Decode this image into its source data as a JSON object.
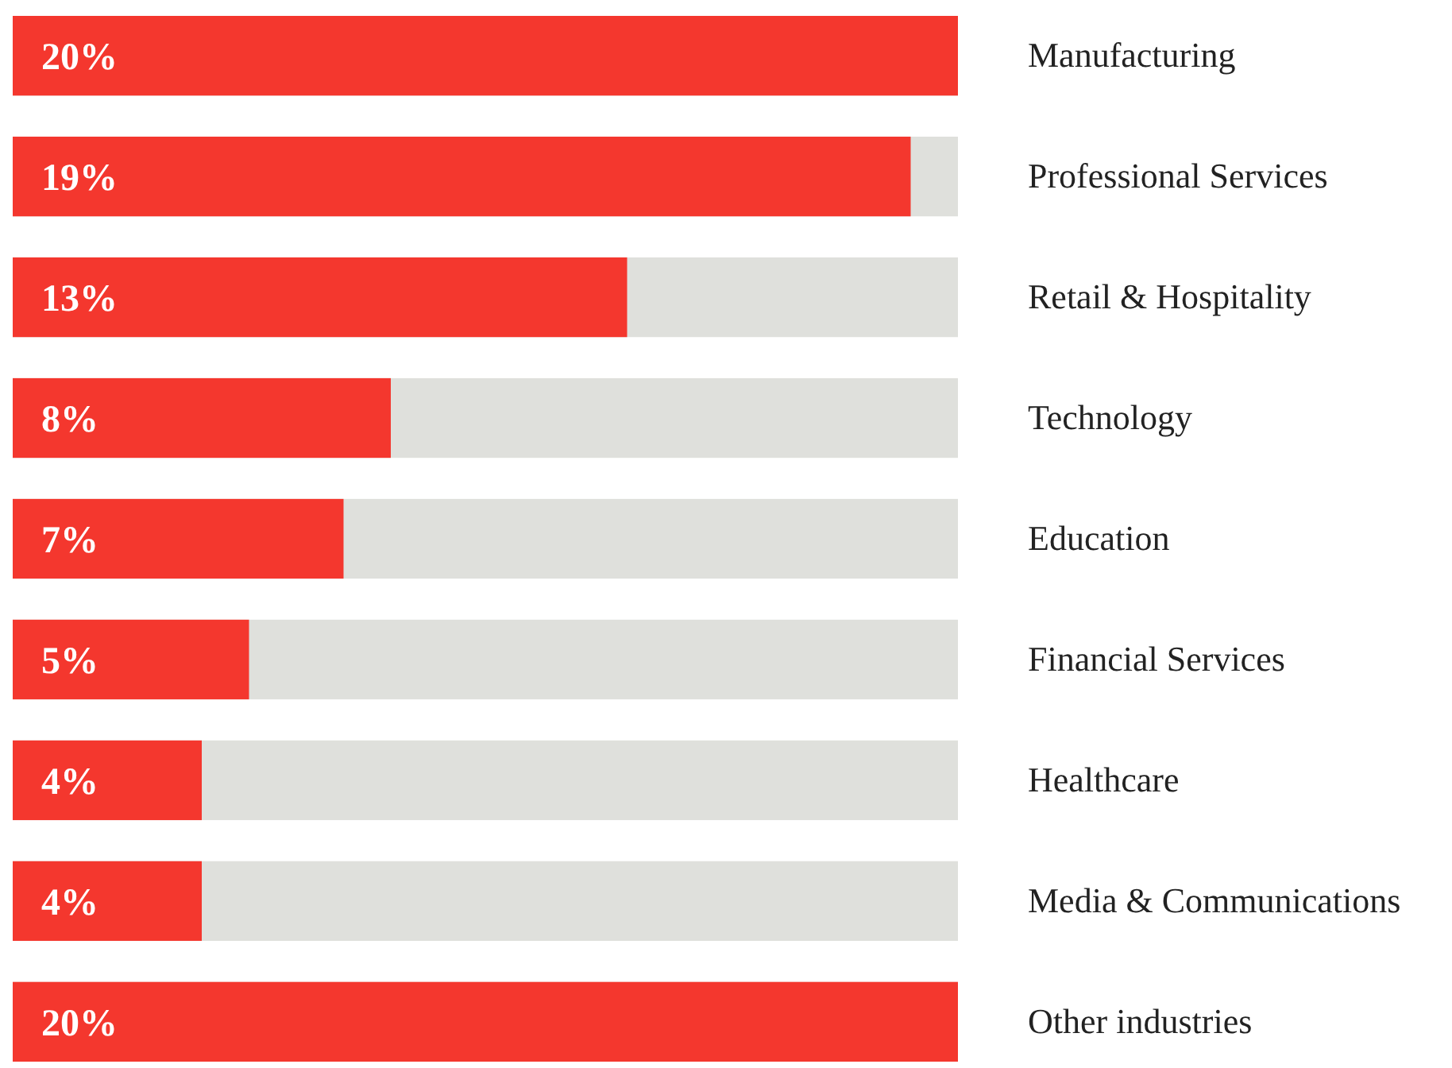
{
  "chart_data": {
    "type": "bar",
    "orientation": "horizontal",
    "categories": [
      "Manufacturing",
      "Professional Services",
      "Retail & Hospitality",
      "Technology",
      "Education",
      "Financial Services",
      "Healthcare",
      "Media & Communications",
      "Other industries"
    ],
    "values": [
      20,
      19,
      13,
      8,
      7,
      5,
      4,
      4,
      20
    ],
    "value_labels": [
      "20%",
      "19%",
      "13%",
      "8%",
      "7%",
      "5%",
      "4%",
      "4%",
      "20%"
    ],
    "color": "#f4372e",
    "xlim": [
      0,
      20
    ],
    "tick_labels": "y"
  }
}
